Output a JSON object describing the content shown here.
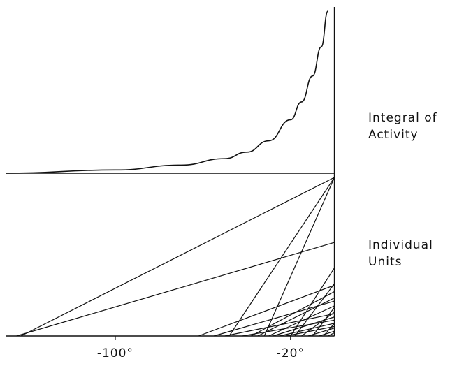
{
  "chart_data": [
    {
      "type": "line",
      "title": "",
      "side_label": [
        "Integral of",
        "Activity"
      ],
      "xlabel": "",
      "ylabel": "",
      "series": [
        {
          "points": [
            [
              -150,
              0
            ],
            [
              -100,
              0.02
            ],
            [
              -70,
              0.05
            ],
            [
              -50,
              0.09
            ],
            [
              -40,
              0.13
            ],
            [
              -30,
              0.2
            ],
            [
              -20,
              0.33
            ],
            [
              -15,
              0.44
            ],
            [
              -10,
              0.6
            ],
            [
              -6,
              0.78
            ],
            [
              -3,
              1.0
            ]
          ]
        }
      ],
      "xlim": [
        -150,
        10
      ],
      "ylim": [
        0,
        1
      ],
      "grid": false,
      "legend": "none"
    },
    {
      "type": "line",
      "title": "",
      "side_label": [
        "Individual",
        "Units"
      ],
      "xlabel": "",
      "ylabel": "",
      "x_ticks": [
        "-100°",
        "-20°"
      ],
      "x_tick_values": [
        -100,
        -20
      ],
      "xlim": [
        -150,
        10
      ],
      "ylim": [
        0,
        1
      ],
      "grid": false,
      "legend": "none",
      "units": [
        {
          "start": -145,
          "end_value": 0.59
        },
        {
          "start": -143,
          "end_value": 1.0
        },
        {
          "start": -62,
          "end_value": 0.32
        },
        {
          "start": -55,
          "end_value": 0.22
        },
        {
          "start": -50,
          "end_value": 0.14
        },
        {
          "start": -48,
          "end_value": 1.0
        },
        {
          "start": -42,
          "end_value": 0.1
        },
        {
          "start": -38,
          "end_value": 0.28
        },
        {
          "start": -35,
          "end_value": 0.24
        },
        {
          "start": -32,
          "end_value": 1.0
        },
        {
          "start": -30,
          "end_value": 0.19
        },
        {
          "start": -28,
          "end_value": 0.12
        },
        {
          "start": -25,
          "end_value": 0.08
        },
        {
          "start": -22,
          "end_value": 0.06
        },
        {
          "start": -20,
          "end_value": 0.43
        },
        {
          "start": -18,
          "end_value": 0.33
        },
        {
          "start": -15,
          "end_value": 0.15
        },
        {
          "start": -12,
          "end_value": 0.05
        },
        {
          "start": -10,
          "end_value": 0.18
        },
        {
          "start": -7,
          "end_value": 0.03
        },
        {
          "start": -5,
          "end_value": 0.08
        },
        {
          "start": -3,
          "end_value": 0.02
        }
      ]
    }
  ]
}
